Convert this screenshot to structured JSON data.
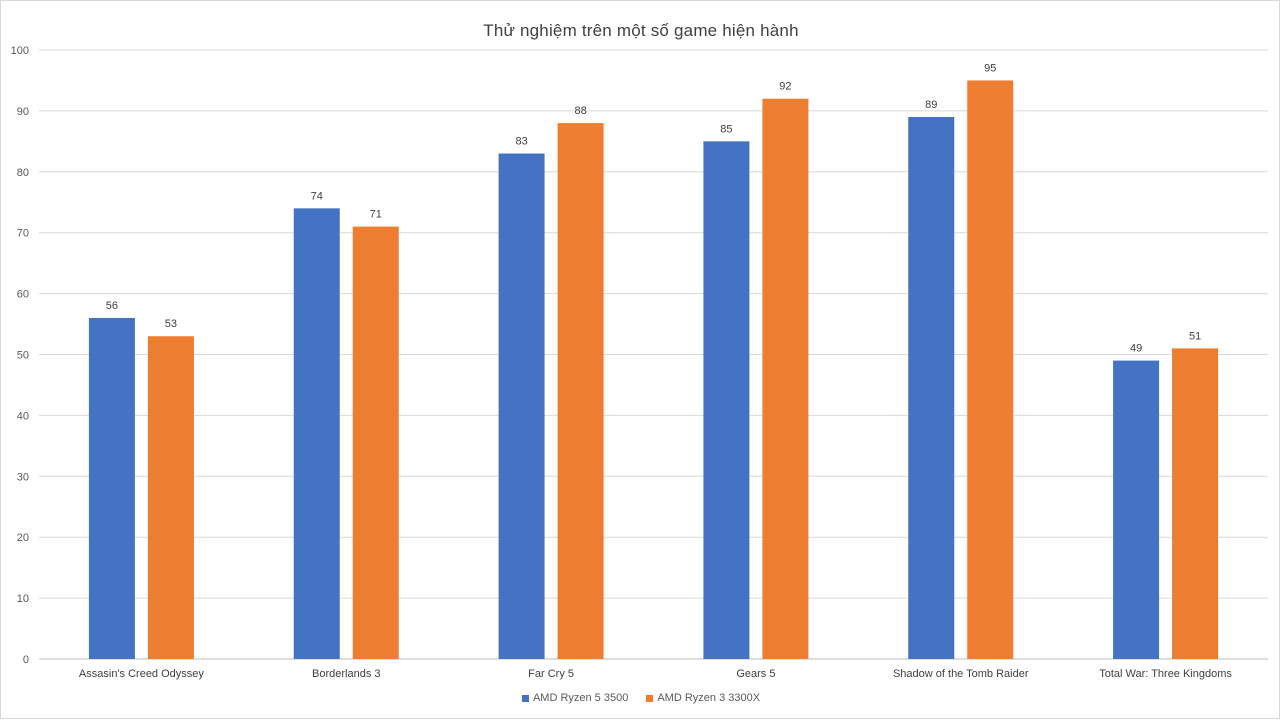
{
  "chart_data": {
    "type": "bar",
    "title": "Thử nghiệm trên một số game hiện hành",
    "categories": [
      "Assasin's Creed Odyssey",
      "Borderlands 3",
      "Far Cry 5",
      "Gears 5",
      "Shadow of the Tomb Raider",
      "Total War: Three Kingdoms"
    ],
    "series": [
      {
        "name": "AMD Ryzen 5 3500",
        "color": "#4472c4",
        "values": [
          56,
          74,
          83,
          85,
          89,
          49
        ]
      },
      {
        "name": "AMD Ryzen 3 3300X",
        "color": "#ed7d31",
        "values": [
          53,
          71,
          88,
          92,
          95,
          51
        ]
      }
    ],
    "ylim": [
      0,
      100
    ],
    "yticks": [
      0,
      10,
      20,
      30,
      40,
      50,
      60,
      70,
      80,
      90,
      100
    ],
    "grid": true,
    "legend_position": "bottom"
  }
}
